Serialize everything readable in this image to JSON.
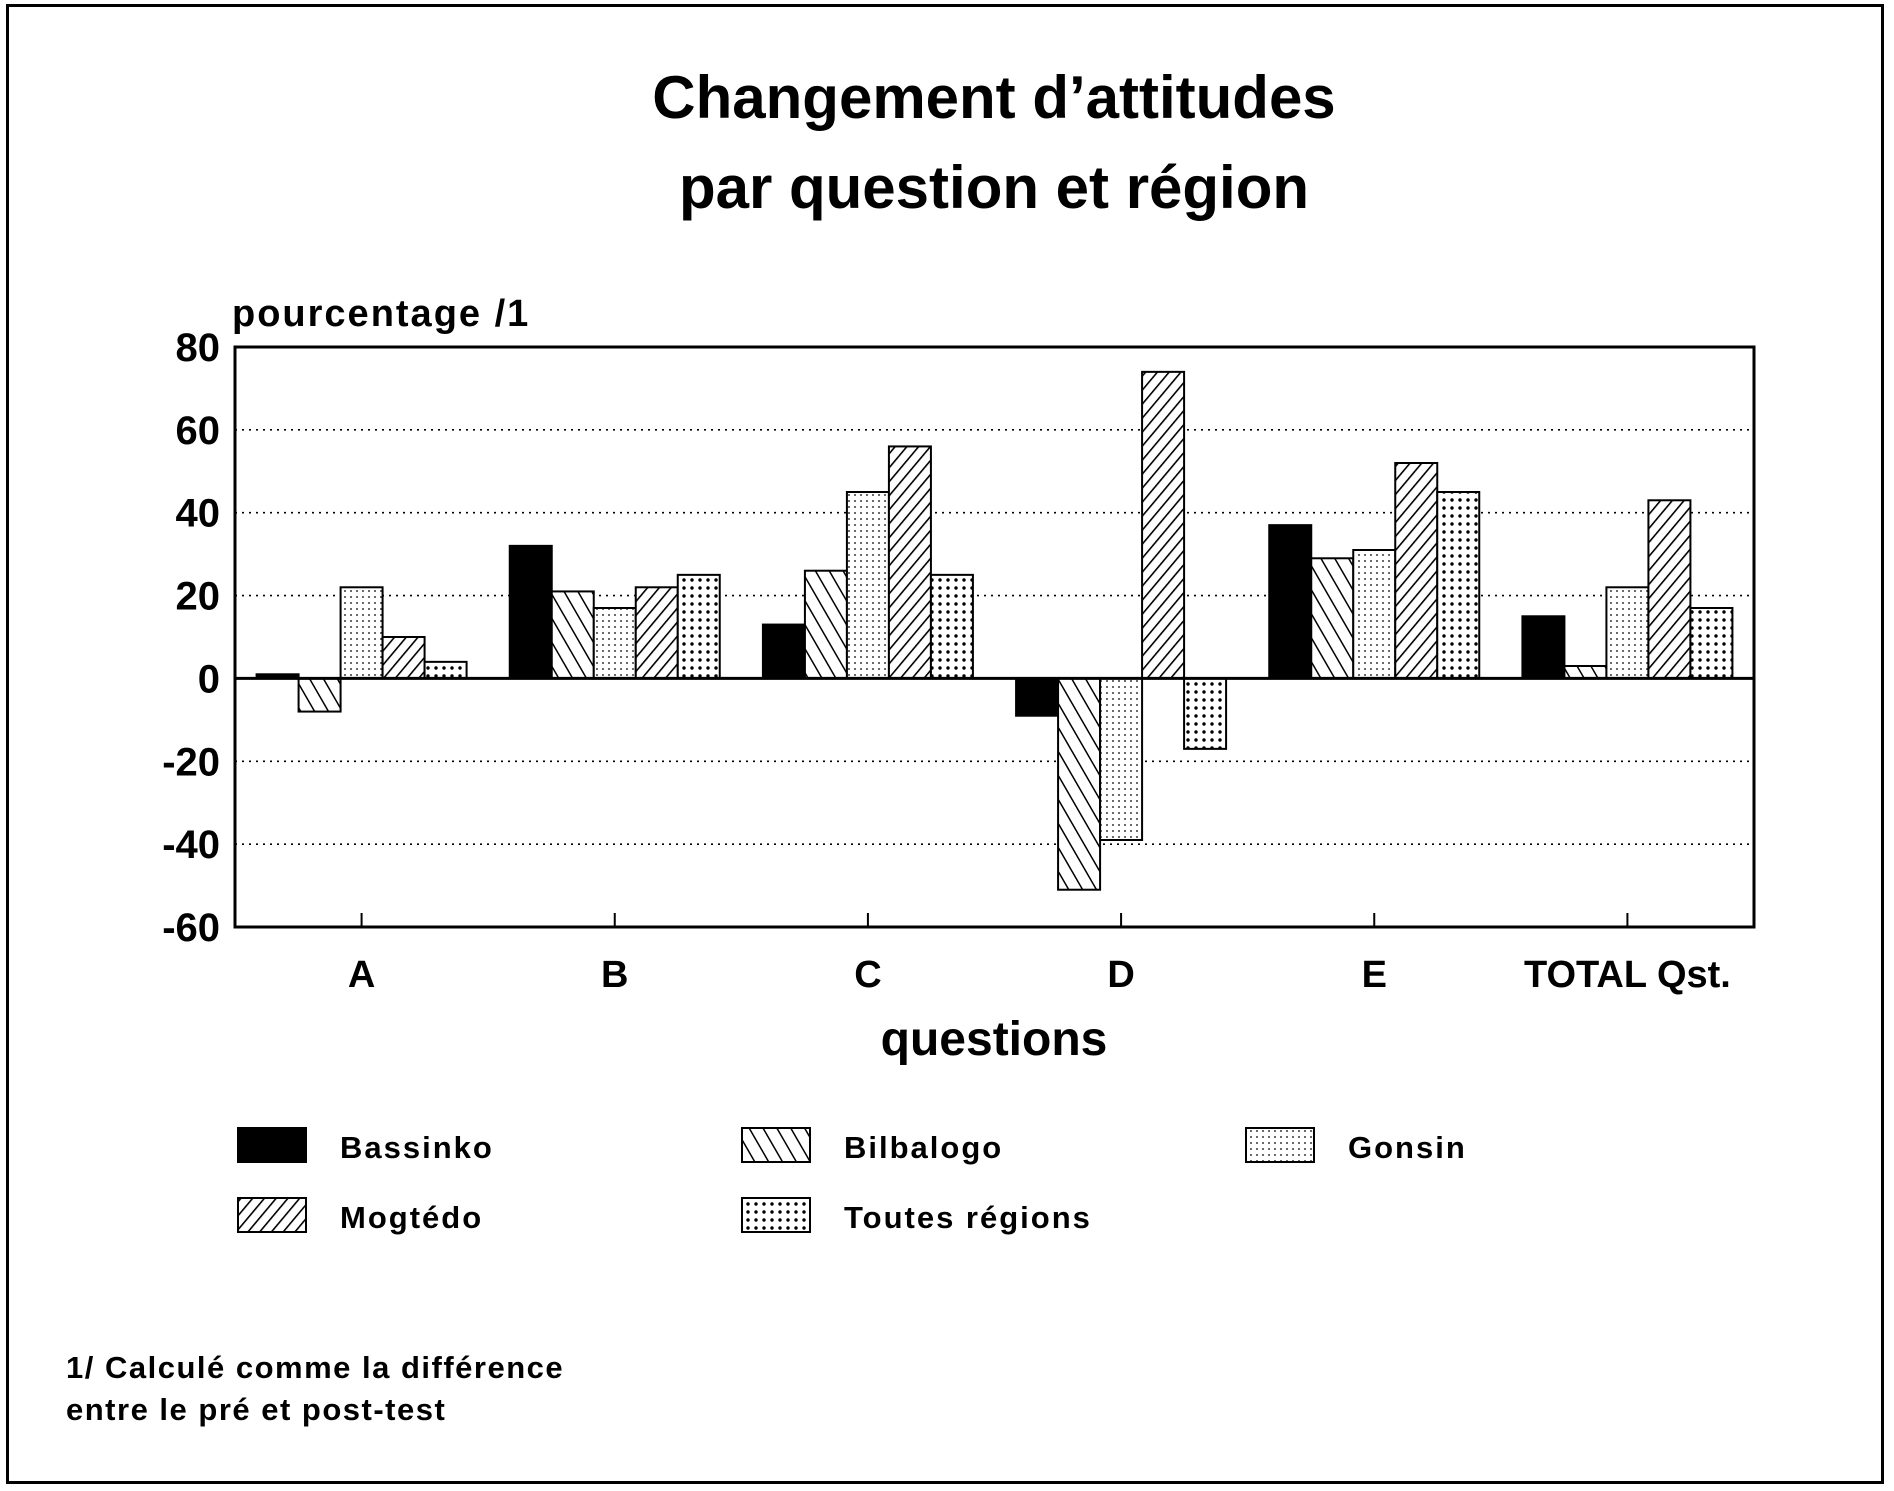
{
  "chart_data": {
    "type": "bar",
    "title": [
      "Changement d’attitudes",
      "par question et région"
    ],
    "ylabel": "pourcentage /1",
    "xlabel": "questions",
    "ylim": [
      -60,
      80
    ],
    "yticks": [
      80,
      60,
      40,
      20,
      0,
      -20,
      -40,
      -60
    ],
    "ytick_labels": [
      "80",
      "60",
      "40",
      "20",
      "0",
      "-20",
      "-40",
      "-60"
    ],
    "grid": "dotted horizontal",
    "categories": [
      "A",
      "B",
      "C",
      "D",
      "E",
      "TOTAL Qst."
    ],
    "series": [
      {
        "name": "Bassinko",
        "pattern": "solid",
        "values": [
          1,
          32,
          13,
          -9,
          37,
          15
        ]
      },
      {
        "name": "Bilbalogo",
        "pattern": "back-diagonal",
        "values": [
          -8,
          21,
          26,
          -51,
          29,
          3
        ]
      },
      {
        "name": "Gonsin",
        "pattern": "light-dots",
        "values": [
          22,
          17,
          45,
          -39,
          31,
          22
        ]
      },
      {
        "name": "Mogtédo",
        "pattern": "forward-diagonal",
        "values": [
          10,
          22,
          56,
          74,
          52,
          43
        ]
      },
      {
        "name": "Toutes régions",
        "pattern": "dense-dots",
        "values": [
          4,
          25,
          25,
          -17,
          45,
          17
        ]
      }
    ],
    "legend_position": "bottom",
    "footnote": [
      "1/ Calculé comme la différence",
      "entre le pré et post-test"
    ]
  }
}
